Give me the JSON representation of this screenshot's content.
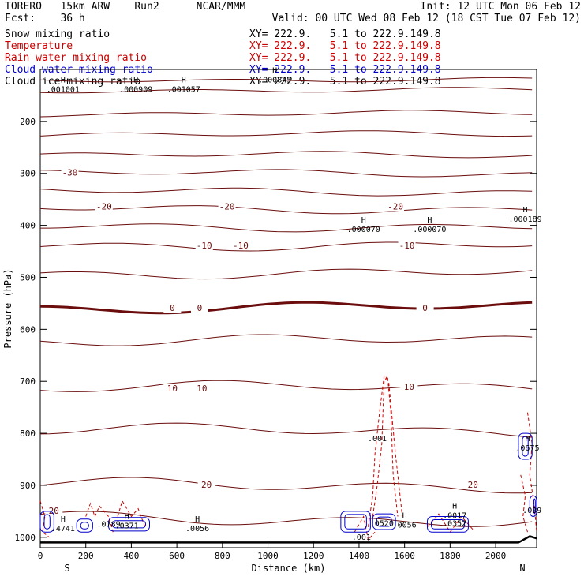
{
  "header": {
    "model": "TORERO   15km ARW    Run2      NCAR/MMM",
    "init": "Init: 12 UTC Mon 06 Feb 12",
    "fcst": "Fcst:    36 h",
    "valid": "Valid: 00 UTC Wed 08 Feb 12 (18 CST Tue 07 Feb 12)"
  },
  "legend": [
    {
      "label": "Snow mixing ratio",
      "xy": "XY= 222.9.   5.1 to 222.9.149.8",
      "color": "#000000"
    },
    {
      "label": "Temperature",
      "xy": "XY= 222.9.   5.1 to 222.9.149.8",
      "color": "#cc0000"
    },
    {
      "label": "Rain water mixing ratio",
      "xy": "XY= 222.9.   5.1 to 222.9.149.8",
      "color": "#cc0000"
    },
    {
      "label": "Cloud water mixing ratio",
      "xy": "XY= 222.9.   5.1 to 222.9.149.8",
      "color": "#0000cc"
    },
    {
      "label": "Cloud ice mixing ratio",
      "xy": "XY= 222.9.   5.1 to 222.9.149.8",
      "color": "#000000"
    }
  ],
  "chart_data": {
    "type": "contour cross-section",
    "xlabel": "Distance (km)",
    "ylabel": "Pressure (hPa)",
    "xlim": [
      0,
      2180
    ],
    "ylim": [
      100,
      1020
    ],
    "x_ticks": [
      0,
      200,
      400,
      600,
      800,
      1000,
      1200,
      1400,
      1600,
      1800,
      2000
    ],
    "y_ticks": [
      200,
      300,
      400,
      500,
      600,
      700,
      800,
      900,
      1000
    ],
    "x_end_labels": {
      "left": "S",
      "right": "N"
    },
    "temperature_contours": [
      {
        "label": "-30",
        "level": -30,
        "label_pos": [
          {
            "x": 130,
            "p": 300
          }
        ]
      },
      {
        "label": "-20",
        "level": -20,
        "label_pos": [
          {
            "x": 280,
            "p": 365
          },
          {
            "x": 820,
            "p": 365
          },
          {
            "x": 1560,
            "p": 365
          }
        ]
      },
      {
        "label": "-10",
        "level": -10,
        "label_pos": [
          {
            "x": 720,
            "p": 440
          },
          {
            "x": 880,
            "p": 440
          },
          {
            "x": 1610,
            "p": 440
          }
        ]
      },
      {
        "label": "0",
        "level": 0,
        "label_pos": [
          {
            "x": 580,
            "p": 560
          },
          {
            "x": 700,
            "p": 560
          },
          {
            "x": 1690,
            "p": 560
          }
        ]
      },
      {
        "label": "10",
        "level": 10,
        "label_pos": [
          {
            "x": 580,
            "p": 715
          },
          {
            "x": 710,
            "p": 715
          },
          {
            "x": 1620,
            "p": 712
          }
        ]
      },
      {
        "label": "20",
        "level": 20,
        "label_pos": [
          {
            "x": 60,
            "p": 950
          },
          {
            "x": 730,
            "p": 900
          },
          {
            "x": 1900,
            "p": 900
          }
        ]
      }
    ],
    "highs": [
      {
        "value": ".001001",
        "x": 100,
        "p": 140
      },
      {
        "value": ".000909",
        "x": 420,
        "p": 140
      },
      {
        "value": ".001057",
        "x": 630,
        "p": 140
      },
      {
        "value": ".000845",
        "x": 1030,
        "p": 122
      },
      {
        "value": ".000070",
        "x": 1420,
        "p": 410
      },
      {
        "value": ".000070",
        "x": 1710,
        "p": 410
      },
      {
        "value": ".000189",
        "x": 2130,
        "p": 390
      },
      {
        "value": ".4741",
        "x": 100,
        "p": 985
      },
      {
        "value": ".0371",
        "x": 380,
        "p": 980
      },
      {
        "value": ".0056",
        "x": 690,
        "p": 985
      },
      {
        "value": ".0056",
        "x": 1600,
        "p": 978
      },
      {
        "value": ".0017",
        "x": 1820,
        "p": 960
      },
      {
        "value": ".0675",
        "x": 2140,
        "p": 830
      }
    ],
    "rain_labels": [
      {
        "value": ".001",
        "x": 1480,
        "p": 815
      },
      {
        "value": ".0789",
        "x": 300,
        "p": 980
      },
      {
        "value": ".0520",
        "x": 1500,
        "p": 978
      },
      {
        "value": ".0352",
        "x": 1820,
        "p": 978
      },
      {
        "value": ".001",
        "x": 1410,
        "p": 1005
      },
      {
        "value": ".039",
        "x": 2160,
        "p": 953
      }
    ]
  }
}
